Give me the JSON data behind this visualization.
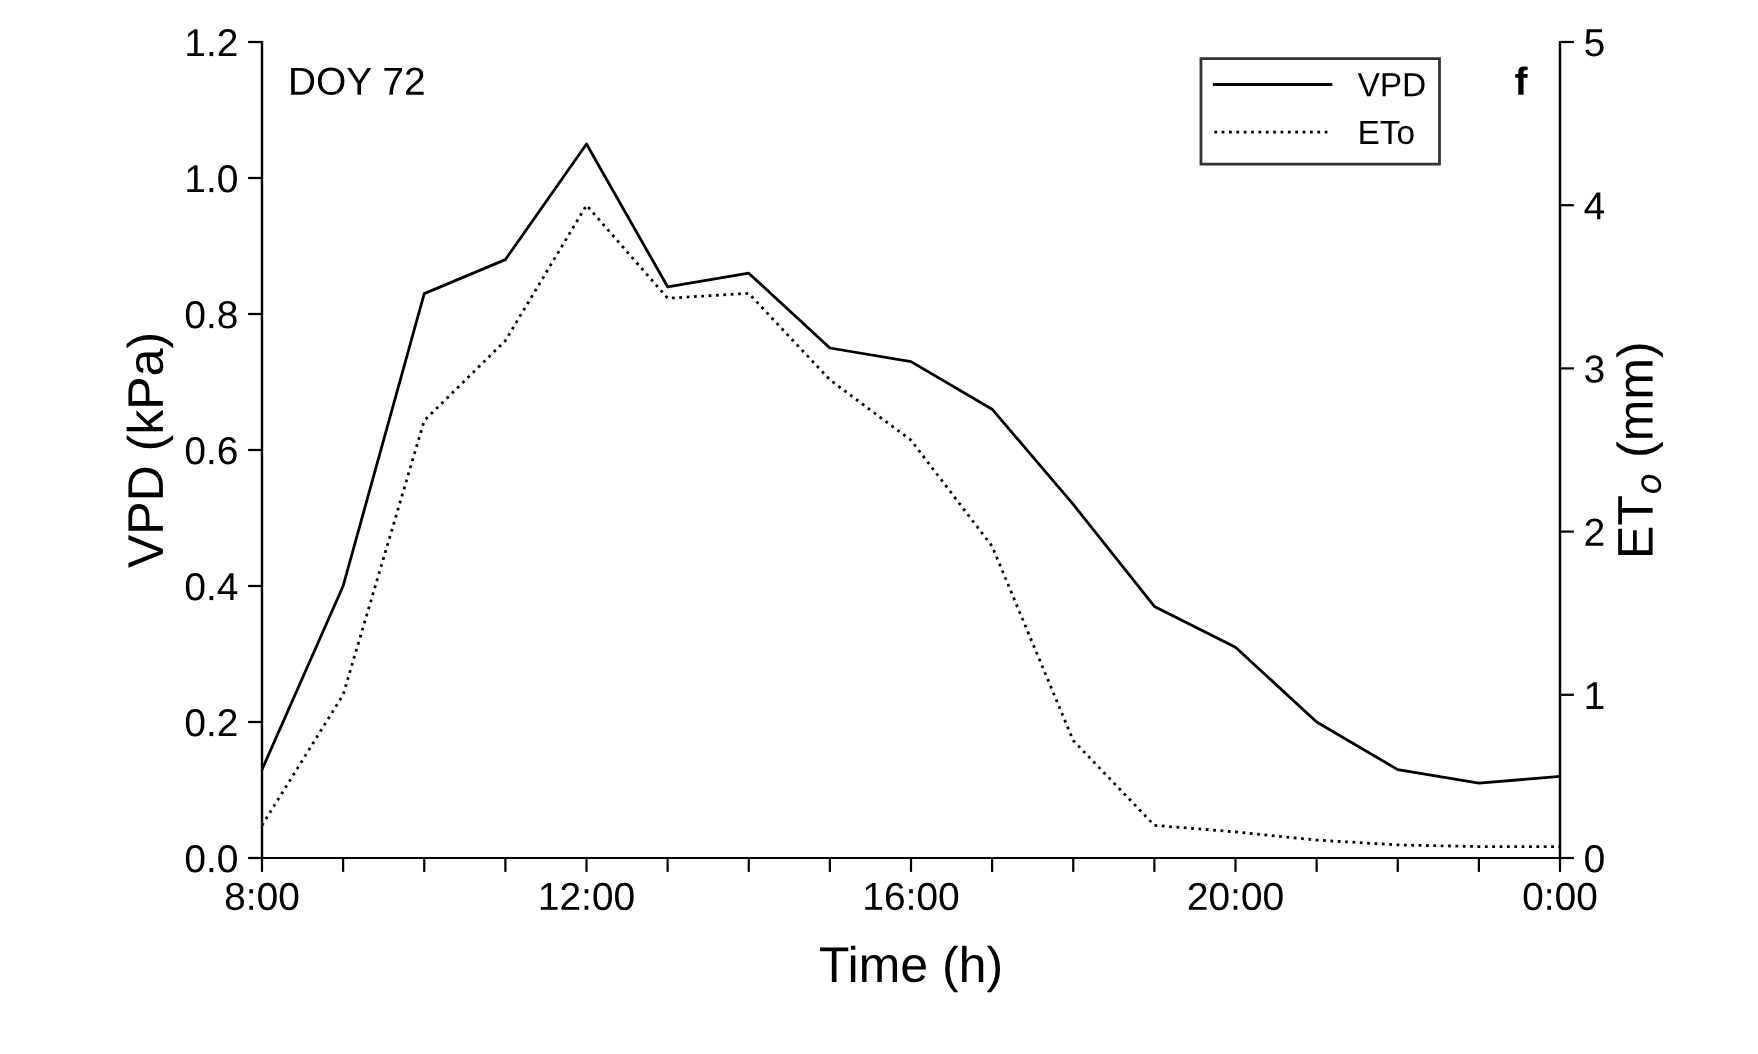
{
  "chart_data": {
    "type": "line",
    "xlabel": "Time (h)",
    "ylabel": "VPD (kPa)",
    "y2label": "ET$_{o}$ (mm)",
    "annotations": [
      "DOY 72",
      "f"
    ],
    "x": [
      8,
      9,
      10,
      11,
      12,
      13,
      14,
      15,
      16,
      17,
      18,
      19,
      20,
      21,
      22,
      23,
      24
    ],
    "series": [
      {
        "name": "VPD",
        "color": "#000000",
        "line_style": "solid",
        "values": [
          0.13,
          0.4,
          0.83,
          0.88,
          1.05,
          0.84,
          0.86,
          0.75,
          0.73,
          0.66,
          0.52,
          0.37,
          0.31,
          0.2,
          0.13,
          0.11,
          0.12
        ]
      },
      {
        "name": "ETo",
        "color": "#000000",
        "line_style": "dotted",
        "axis": "y2",
        "values": [
          0.2,
          1.0,
          2.68,
          3.17,
          4.0,
          3.43,
          3.46,
          2.93,
          2.56,
          1.91,
          0.72,
          0.2,
          0.16,
          0.11,
          0.08,
          0.07,
          0.07
        ]
      }
    ],
    "xlim": [
      8,
      24
    ],
    "xticks": [
      {
        "value": 8,
        "label": "8:00"
      },
      {
        "value": 9,
        "label": null
      },
      {
        "value": 10,
        "label": null
      },
      {
        "value": 11,
        "label": null
      },
      {
        "value": 12,
        "label": "12:00"
      },
      {
        "value": 13,
        "label": null
      },
      {
        "value": 14,
        "label": null
      },
      {
        "value": 15,
        "label": null
      },
      {
        "value": 16,
        "label": "16:00"
      },
      {
        "value": 17,
        "label": null
      },
      {
        "value": 18,
        "label": null
      },
      {
        "value": 19,
        "label": null
      },
      {
        "value": 20,
        "label": "20:00"
      },
      {
        "value": 21,
        "label": null
      },
      {
        "value": 22,
        "label": null
      },
      {
        "value": 23,
        "label": null
      },
      {
        "value": 24,
        "label": "0:00"
      }
    ],
    "ylim": [
      0,
      1.2
    ],
    "yticks": [
      {
        "value": 0,
        "label": "0.0"
      },
      {
        "value": 0.2,
        "label": "0.2"
      },
      {
        "value": 0.4,
        "label": "0.4"
      },
      {
        "value": 0.6,
        "label": "0.6"
      },
      {
        "value": 0.8,
        "label": "0.8"
      },
      {
        "value": 1.0,
        "label": "1.0"
      },
      {
        "value": 1.2,
        "label": "1.2"
      }
    ],
    "y2lim": [
      0,
      5
    ],
    "y2ticks": [
      0,
      1,
      2,
      3,
      4,
      5
    ],
    "legend": "top right",
    "grid": false,
    "marker": "none"
  }
}
